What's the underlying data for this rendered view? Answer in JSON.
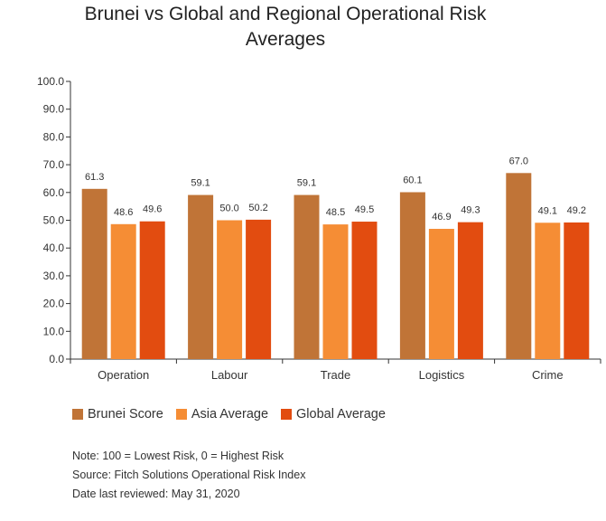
{
  "chart_data": {
    "type": "bar",
    "title": "Brunei vs Global and Regional Operational Risk Averages",
    "title_lines": [
      "Brunei vs Global and Regional Operational Risk",
      "Averages"
    ],
    "categories": [
      "Operation",
      "Labour",
      "Trade",
      "Logistics",
      "Crime"
    ],
    "series": [
      {
        "name": "Brunei Score",
        "color": "#c07437",
        "values": [
          61.3,
          59.1,
          59.1,
          60.1,
          67.0
        ]
      },
      {
        "name": "Asia Average",
        "color": "#f58d35",
        "values": [
          48.6,
          50.0,
          48.5,
          46.9,
          49.1
        ]
      },
      {
        "name": "Global Average",
        "color": "#e24c10",
        "values": [
          49.6,
          50.2,
          49.5,
          49.3,
          49.2
        ]
      }
    ],
    "ylim": [
      0,
      100
    ],
    "yticks": [
      0,
      10,
      20,
      30,
      40,
      50,
      60,
      70,
      80,
      90,
      100
    ],
    "tick_format_decimals": 1,
    "xlabel": "",
    "ylabel": "",
    "grid": false,
    "legend_position": "bottom"
  },
  "notes": {
    "note": "Note: 100 = Lowest Risk, 0 = Highest Risk",
    "source": "Source: Fitch Solutions Operational Risk Index",
    "date": "Date last reviewed: May 31, 2020"
  }
}
